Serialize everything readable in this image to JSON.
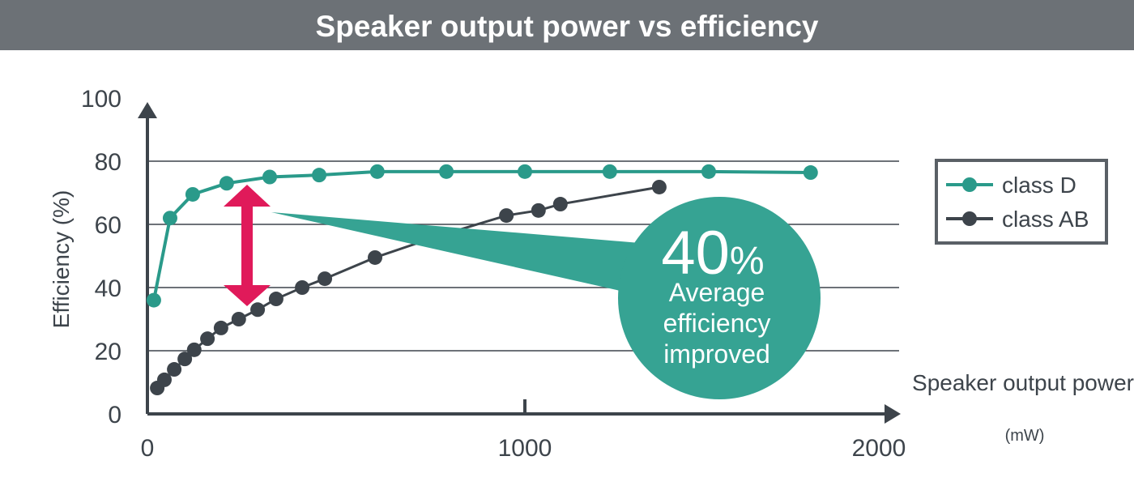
{
  "chart_data": {
    "type": "line",
    "title": "Speaker output power vs efficiency",
    "xlabel": "Speaker output power",
    "xunit": "(mW)",
    "ylabel": "Efficiency (%)",
    "xlim": [
      0,
      2000
    ],
    "ylim": [
      0,
      100
    ],
    "xticks": [
      0,
      1000,
      2000
    ],
    "yticks": [
      0,
      20,
      40,
      60,
      80,
      100
    ],
    "grid": "horizontal",
    "legend_position": "right",
    "series": [
      {
        "name": "class D",
        "color": "#2a9a8a",
        "x": [
          17,
          60,
          120,
          210,
          324,
          455,
          609,
          792,
          1000,
          1225,
          1487,
          1757
        ],
        "y": [
          36,
          62,
          69.5,
          73,
          75,
          75.6,
          76.7,
          76.7,
          76.7,
          76.7,
          76.7,
          76.4
        ]
      },
      {
        "name": "class AB",
        "color": "#3d444b",
        "x": [
          26,
          45,
          71,
          99,
          124,
          159,
          195,
          242,
          292,
          341,
          410,
          470,
          603,
          768,
          951,
          1036,
          1094,
          1356
        ],
        "y": [
          8.2,
          10.8,
          14.1,
          17.4,
          20.3,
          23.8,
          27.2,
          30,
          33,
          36.4,
          40,
          42.8,
          49.5,
          56.2,
          62.8,
          64.4,
          66.4,
          71.8
        ]
      }
    ],
    "annotation": {
      "big": "40",
      "pct": "%",
      "lines": [
        "Average",
        "efficiency",
        "improved"
      ],
      "color": "#36a393",
      "arrow_color": "#e01a5a"
    }
  }
}
